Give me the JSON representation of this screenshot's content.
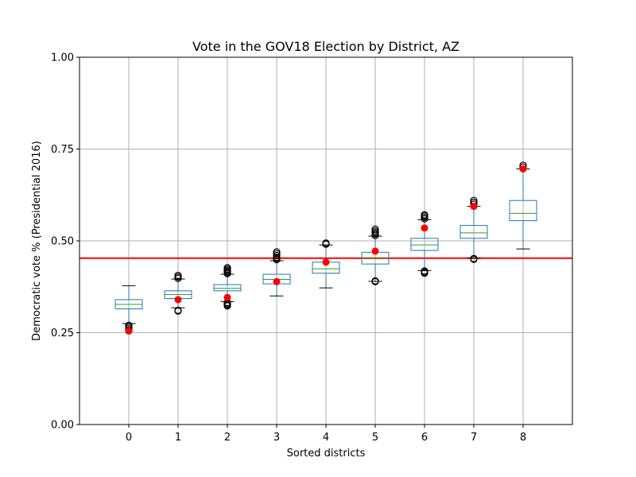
{
  "chart_data": {
    "type": "box",
    "title": "Vote in the GOV18 Election by District, AZ",
    "xlabel": "Sorted districts",
    "ylabel": "Democratic vote % (Presidential 2016)",
    "ylim": [
      0,
      1
    ],
    "yticks": [
      "0.00",
      "0.25",
      "0.50",
      "0.75",
      "1.00"
    ],
    "grid": true,
    "categories": [
      "0",
      "1",
      "2",
      "3",
      "4",
      "5",
      "6",
      "7",
      "8"
    ],
    "reference_line": {
      "y": 0.453,
      "color": "#ff0000"
    },
    "colors": {
      "box": "#1f77b4",
      "median": "#2ca02c",
      "actual_point": "#ff0000",
      "whisker_cap": "#000000",
      "outlier": "#000000",
      "grid": "#b0b0b0"
    },
    "boxes": [
      {
        "district": "0",
        "whisker_low": 0.275,
        "q1": 0.315,
        "median": 0.327,
        "q3": 0.34,
        "whisker_high": 0.378,
        "outliers_low": [
          0.255,
          0.258,
          0.262,
          0.266,
          0.27
        ],
        "outliers_high": [],
        "actual": 0.255
      },
      {
        "district": "1",
        "whisker_low": 0.318,
        "q1": 0.343,
        "median": 0.354,
        "q3": 0.364,
        "whisker_high": 0.396,
        "outliers_low": [
          0.309,
          0.311
        ],
        "outliers_high": [
          0.398,
          0.402,
          0.406
        ],
        "actual": 0.34
      },
      {
        "district": "2",
        "whisker_low": 0.335,
        "q1": 0.364,
        "median": 0.371,
        "q3": 0.381,
        "whisker_high": 0.409,
        "outliers_low": [
          0.323,
          0.326,
          0.329,
          0.332
        ],
        "outliers_high": [
          0.411,
          0.414,
          0.417,
          0.42,
          0.423,
          0.427
        ],
        "actual": 0.346
      },
      {
        "district": "3",
        "whisker_low": 0.35,
        "q1": 0.383,
        "median": 0.395,
        "q3": 0.409,
        "whisker_high": 0.446,
        "outliers_low": [],
        "outliers_high": [
          0.449,
          0.452,
          0.455,
          0.46,
          0.465,
          0.47
        ],
        "actual": 0.389
      },
      {
        "district": "4",
        "whisker_low": 0.372,
        "q1": 0.412,
        "median": 0.424,
        "q3": 0.442,
        "whisker_high": 0.489,
        "outliers_low": [],
        "outliers_high": [
          0.491,
          0.494
        ],
        "actual": 0.442
      },
      {
        "district": "5",
        "whisker_low": 0.39,
        "q1": 0.437,
        "median": 0.454,
        "q3": 0.469,
        "whisker_high": 0.513,
        "outliers_low": [
          0.389,
          0.391
        ],
        "outliers_high": [
          0.515,
          0.519,
          0.523,
          0.527,
          0.532
        ],
        "actual": 0.472
      },
      {
        "district": "6",
        "whisker_low": 0.419,
        "q1": 0.474,
        "median": 0.489,
        "q3": 0.507,
        "whisker_high": 0.558,
        "outliers_low": [
          0.412,
          0.415,
          0.418
        ],
        "outliers_high": [
          0.56,
          0.564,
          0.568,
          0.571
        ],
        "actual": 0.535
      },
      {
        "district": "7",
        "whisker_low": 0.453,
        "q1": 0.507,
        "median": 0.522,
        "q3": 0.542,
        "whisker_high": 0.594,
        "outliers_low": [
          0.45,
          0.452
        ],
        "outliers_high": [
          0.6,
          0.605,
          0.61
        ],
        "actual": 0.594
      },
      {
        "district": "8",
        "whisker_low": 0.478,
        "q1": 0.555,
        "median": 0.575,
        "q3": 0.61,
        "whisker_high": 0.696,
        "outliers_low": [],
        "outliers_high": [
          0.701,
          0.706
        ],
        "actual": 0.696
      }
    ]
  }
}
